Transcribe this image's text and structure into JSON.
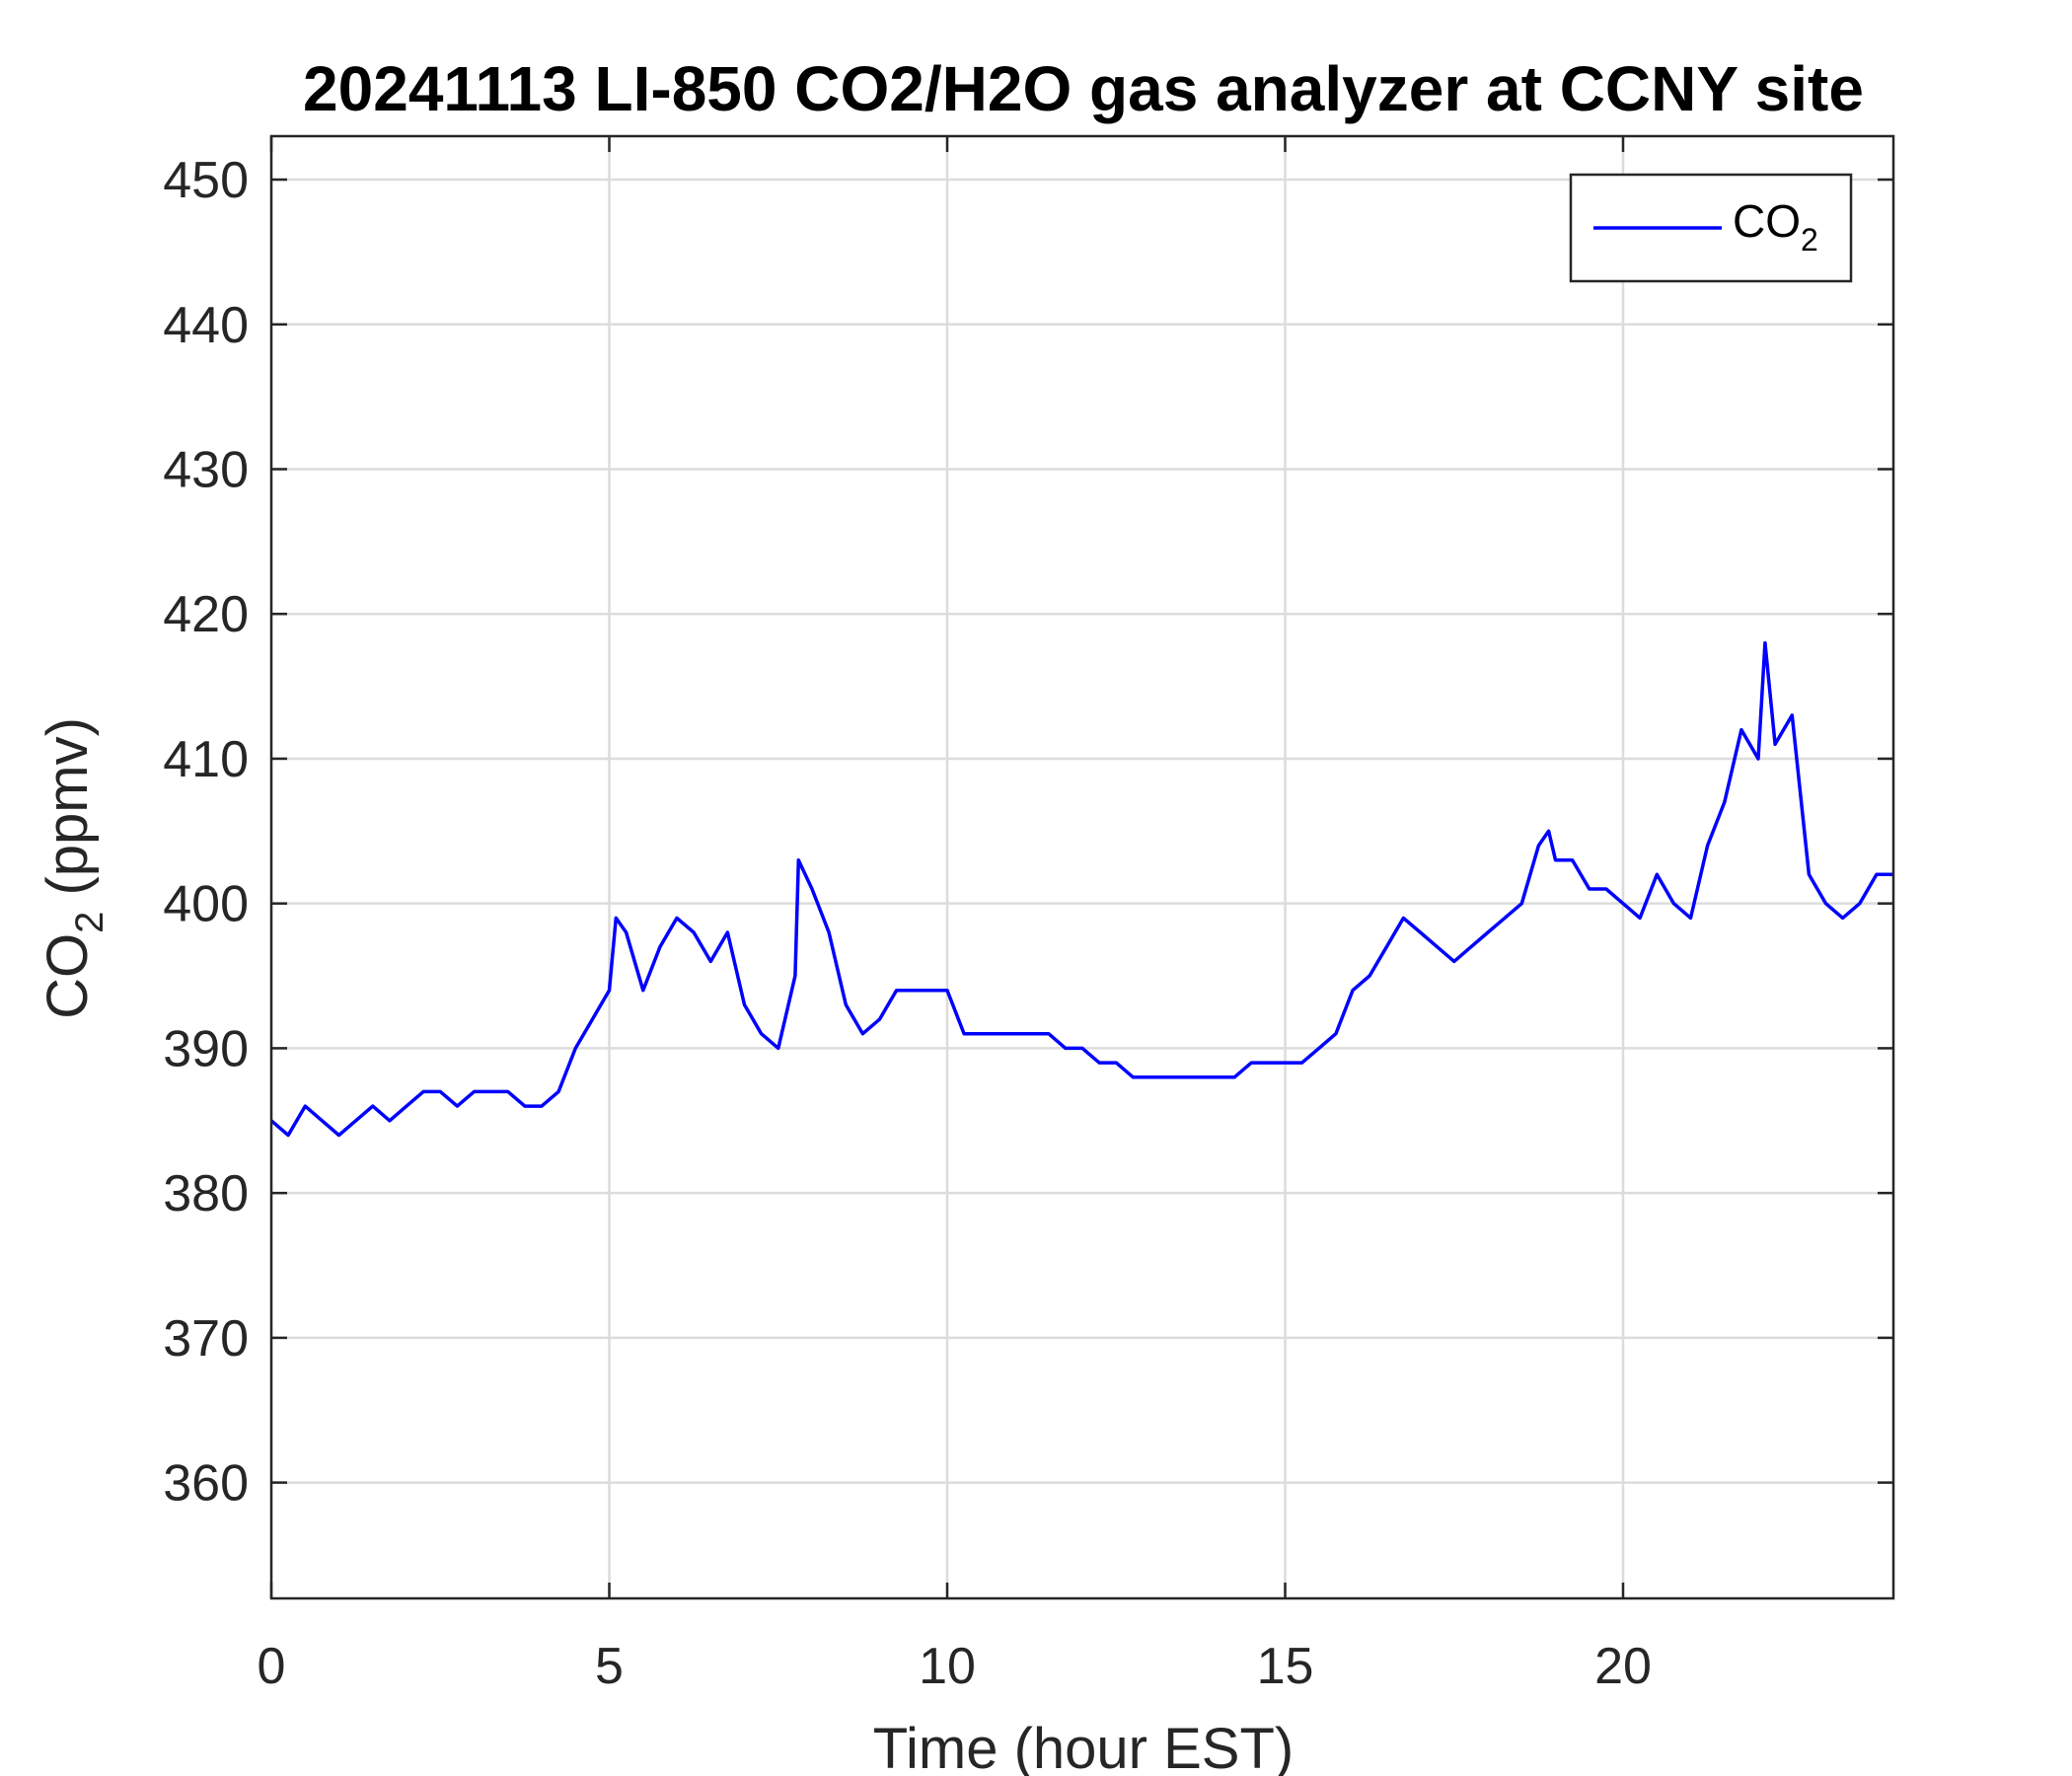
{
  "chart_data": {
    "type": "line",
    "title": "20241113 LI-850 CO2/H2O gas analyzer at CCNY site",
    "xlabel": "Time (hour EST)",
    "ylabel": {
      "prefix": "CO",
      "subscript": "2",
      "suffix": " (ppmv)"
    },
    "xlim": [
      0,
      24
    ],
    "ylim": [
      352,
      453
    ],
    "xticks": [
      0,
      5,
      10,
      15,
      20
    ],
    "xtick_labels": [
      "0",
      "5",
      "10",
      "15",
      "20"
    ],
    "yticks": [
      360,
      370,
      380,
      390,
      400,
      410,
      420,
      430,
      440,
      450
    ],
    "ytick_labels": [
      "360",
      "370",
      "380",
      "390",
      "400",
      "410",
      "420",
      "430",
      "440",
      "450"
    ],
    "grid": true,
    "legend": {
      "position": "top-right",
      "entries": [
        {
          "text": "CO",
          "subscript": "2"
        }
      ]
    },
    "series": [
      {
        "name": "CO2",
        "color": "#0000ff",
        "x": [
          0.0,
          0.25,
          0.5,
          0.75,
          1.0,
          1.25,
          1.5,
          1.75,
          2.0,
          2.25,
          2.5,
          2.75,
          3.0,
          3.25,
          3.5,
          3.75,
          4.0,
          4.25,
          4.5,
          4.75,
          5.0,
          5.1,
          5.25,
          5.5,
          5.75,
          6.0,
          6.25,
          6.5,
          6.75,
          7.0,
          7.25,
          7.5,
          7.75,
          7.8,
          8.0,
          8.25,
          8.5,
          8.75,
          9.0,
          9.25,
          9.5,
          9.75,
          10.0,
          10.25,
          10.5,
          10.75,
          11.0,
          11.25,
          11.5,
          11.75,
          12.0,
          12.25,
          12.5,
          12.75,
          13.0,
          13.25,
          13.5,
          13.75,
          14.0,
          14.25,
          14.5,
          14.75,
          15.0,
          15.25,
          15.5,
          15.75,
          16.0,
          16.25,
          16.5,
          16.75,
          17.0,
          17.25,
          17.5,
          17.75,
          18.0,
          18.25,
          18.5,
          18.75,
          18.9,
          19.0,
          19.25,
          19.5,
          19.75,
          20.0,
          20.25,
          20.5,
          20.75,
          21.0,
          21.25,
          21.5,
          21.75,
          22.0,
          22.1,
          22.25,
          22.5,
          22.75,
          23.0,
          23.25,
          23.5,
          23.75,
          24.0
        ],
        "y": [
          385,
          384,
          386,
          385,
          384,
          385,
          386,
          385,
          386,
          387,
          387,
          386,
          387,
          387,
          387,
          386,
          386,
          387,
          390,
          392,
          394,
          399,
          398,
          394,
          397,
          399,
          398,
          396,
          398,
          393,
          391,
          390,
          395,
          403,
          401,
          398,
          393,
          391,
          392,
          394,
          394,
          394,
          394,
          391,
          391,
          391,
          391,
          391,
          391,
          390,
          390,
          389,
          389,
          388,
          388,
          388,
          388,
          388,
          388,
          388,
          389,
          389,
          389,
          389,
          390,
          391,
          394,
          395,
          397,
          399,
          398,
          397,
          396,
          397,
          398,
          399,
          400,
          404,
          405,
          403,
          403,
          401,
          401,
          400,
          399,
          402,
          400,
          399,
          404,
          407,
          412,
          410,
          418,
          411,
          413,
          402,
          400,
          399,
          400,
          402,
          402
        ]
      }
    ]
  }
}
